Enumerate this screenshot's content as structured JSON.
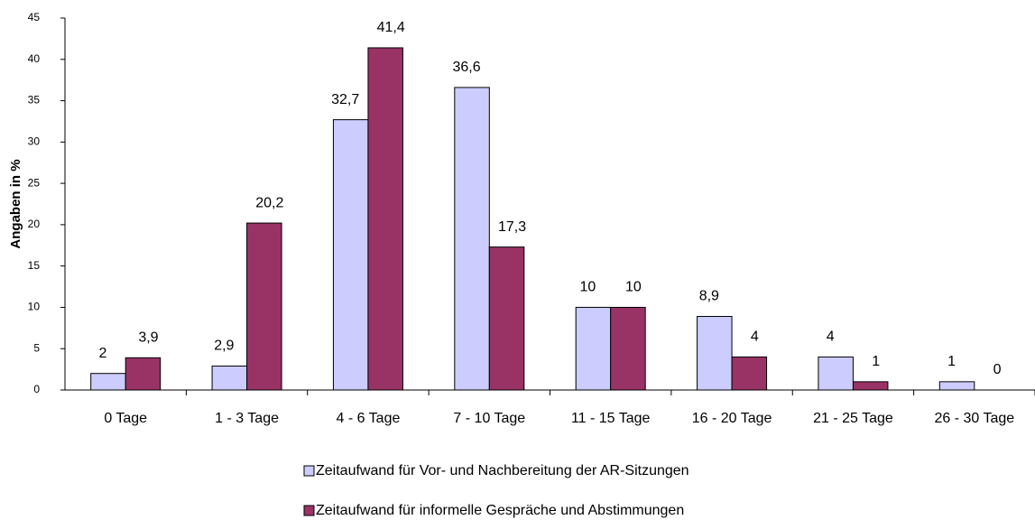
{
  "chart_data": {
    "type": "bar",
    "y_label": "Angaben in %",
    "categories": [
      "0 Tage",
      "1 - 3 Tage",
      "4 - 6 Tage",
      "7 - 10 Tage",
      "11 - 15 Tage",
      "16 - 20 Tage",
      "21 - 25 Tage",
      "26 - 30 Tage"
    ],
    "series": [
      {
        "name": "Zeitaufwand für Vor- und Nachbereitung der AR-Sitzungen",
        "color": "#ccccff",
        "values": [
          2,
          2.9,
          32.7,
          36.6,
          10,
          8.9,
          4,
          1
        ],
        "value_labels": [
          "2",
          "2,9",
          "32,7",
          "36,6",
          "10",
          "8,9",
          "4",
          "1"
        ]
      },
      {
        "name": "Zeitaufwand für informelle Gespräche und Abstimmungen",
        "color": "#993366",
        "values": [
          3.9,
          20.2,
          41.4,
          17.3,
          10,
          4,
          1,
          0
        ],
        "value_labels": [
          "3,9",
          "20,2",
          "41,4",
          "17,3",
          "10",
          "4",
          "1",
          "0"
        ]
      }
    ],
    "ylim": [
      0,
      45
    ],
    "yticks": [
      0,
      5,
      10,
      15,
      20,
      25,
      30,
      35,
      40,
      45
    ],
    "grid": false
  }
}
